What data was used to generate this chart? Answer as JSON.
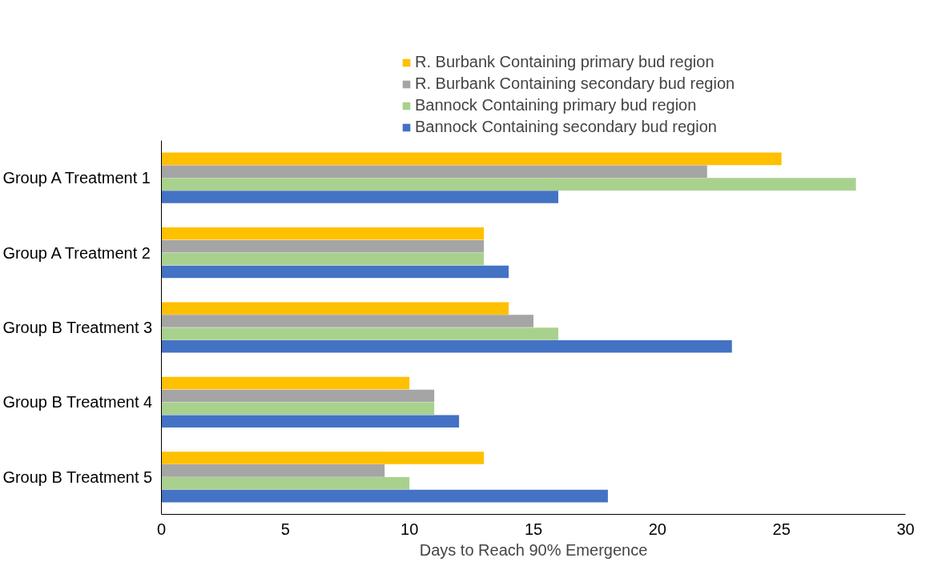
{
  "chart_data": {
    "type": "bar",
    "orientation": "horizontal",
    "xlabel": "Days to Reach 90% Emergence",
    "categories": [
      "Group A Treatment 1",
      "Group A Treatment 2",
      "Group B Treatment 3",
      "Group B Treatment 4",
      "Group B Treatment 5"
    ],
    "series": [
      {
        "name": "R. Burbank Containing primary bud region",
        "color": "#ffc000",
        "values": [
          25,
          13,
          14,
          10,
          13
        ]
      },
      {
        "name": "R. Burbank Containing secondary bud region",
        "color": "#a5a5a5",
        "values": [
          22,
          13,
          15,
          11,
          9
        ]
      },
      {
        "name": "Bannock Containing primary bud region",
        "color": "#a9d18e",
        "values": [
          28,
          13,
          16,
          11,
          10
        ]
      },
      {
        "name": "Bannock Containing secondary bud region",
        "color": "#4472c4",
        "values": [
          16,
          14,
          23,
          12,
          18
        ]
      }
    ],
    "xlim": [
      0,
      30
    ],
    "xticks": [
      0,
      5,
      10,
      15,
      20,
      25,
      30
    ],
    "grid": false,
    "legend": "top"
  }
}
